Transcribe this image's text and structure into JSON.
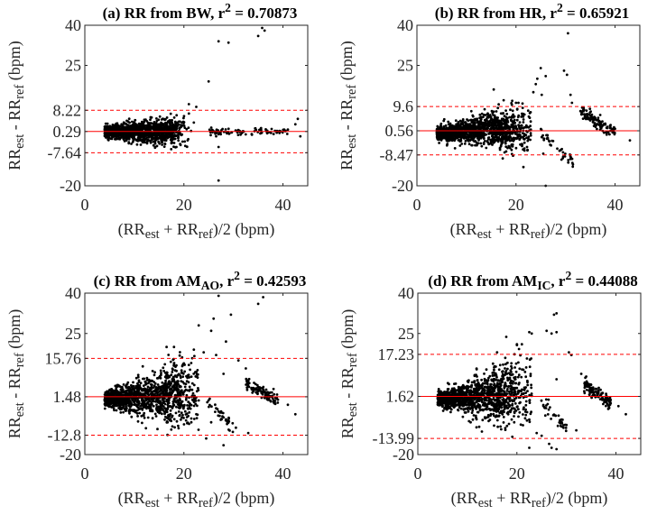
{
  "chart_data": [
    {
      "type": "scatter",
      "title_parts": [
        {
          "t": "(a) RR from BW, r"
        },
        {
          "t": "2",
          "sup": true
        },
        {
          "t": " = 0.70873"
        }
      ],
      "xlabel_parts": [
        {
          "t": "(RR"
        },
        {
          "t": "est",
          "sub": true
        },
        {
          "t": " + RR"
        },
        {
          "t": "ref",
          "sub": true
        },
        {
          "t": ")/2 (bpm)"
        }
      ],
      "ylabel_parts": [
        {
          "t": "RR"
        },
        {
          "t": "est",
          "sub": true
        },
        {
          "t": " - RR"
        },
        {
          "t": "ref",
          "sub": true
        },
        {
          "t": " (bpm)"
        }
      ],
      "xlim": [
        0,
        45
      ],
      "ylim": [
        -20,
        40
      ],
      "xticks": [
        0,
        20,
        40
      ],
      "yticks": [
        {
          "v": 40,
          "label": "40"
        },
        {
          "v": 25,
          "label": "25"
        },
        {
          "v": 8.22,
          "label": "8.22"
        },
        {
          "v": 0.29,
          "label": "0.29"
        },
        {
          "v": -7.64,
          "label": "-7.64"
        },
        {
          "v": -20,
          "label": "-20"
        }
      ],
      "mean_line": {
        "value": 0.29,
        "color": "#ff0000",
        "style": "solid"
      },
      "limit_lines": [
        {
          "value": 8.22,
          "color": "#ff0000",
          "style": "dashed"
        },
        {
          "value": -7.64,
          "color": "#ff0000",
          "style": "dashed"
        }
      ],
      "points_outliers": [
        [
          27,
          34
        ],
        [
          29,
          33.5
        ],
        [
          35,
          36
        ],
        [
          35.8,
          39
        ],
        [
          36.3,
          38
        ],
        [
          25,
          19
        ],
        [
          27,
          -18
        ],
        [
          21,
          10.5
        ],
        [
          22.5,
          9.5
        ],
        [
          21,
          7
        ],
        [
          27,
          -5.5
        ],
        [
          43,
          5
        ],
        [
          42.5,
          3
        ],
        [
          43.5,
          -1.5
        ],
        [
          18.5,
          -5.5
        ],
        [
          26.5,
          -1.5
        ],
        [
          41,
          1
        ]
      ],
      "points_band": {
        "x_range": [
          25,
          41
        ],
        "y_from": 0.3,
        "y_to": 0.3
      },
      "point_color": "#000000"
    },
    {
      "type": "scatter",
      "title_parts": [
        {
          "t": "(b) RR from HR, r"
        },
        {
          "t": "2",
          "sup": true
        },
        {
          "t": " = 0.65921"
        }
      ],
      "xlabel_parts": [
        {
          "t": "(RR"
        },
        {
          "t": "est",
          "sub": true
        },
        {
          "t": " + RR"
        },
        {
          "t": "ref",
          "sub": true
        },
        {
          "t": ")/2 (bpm)"
        }
      ],
      "ylabel_parts": [
        {
          "t": "RR"
        },
        {
          "t": "est",
          "sub": true
        },
        {
          "t": " - RR"
        },
        {
          "t": "ref",
          "sub": true
        },
        {
          "t": " (bpm)"
        }
      ],
      "xlim": [
        0,
        45
      ],
      "ylim": [
        -20,
        40
      ],
      "xticks": [
        0,
        20,
        40
      ],
      "yticks": [
        {
          "v": 40,
          "label": "40"
        },
        {
          "v": 25,
          "label": "25"
        },
        {
          "v": 9.6,
          "label": "9.6"
        },
        {
          "v": 0.56,
          "label": "0.56"
        },
        {
          "v": -8.47,
          "label": "-8.47"
        },
        {
          "v": -20,
          "label": "-20"
        }
      ],
      "mean_line": {
        "value": 0.56,
        "color": "#ff0000",
        "style": "solid"
      },
      "limit_lines": [
        {
          "value": 9.6,
          "color": "#ff0000",
          "style": "dashed"
        },
        {
          "value": -8.47,
          "color": "#ff0000",
          "style": "dashed"
        }
      ],
      "points_outliers": [
        [
          23.5,
          15
        ],
        [
          24,
          18
        ],
        [
          24.3,
          20
        ],
        [
          25,
          24
        ],
        [
          25.2,
          14
        ],
        [
          26,
          21
        ],
        [
          29.7,
          23
        ],
        [
          30.3,
          21.5
        ],
        [
          30.5,
          37
        ],
        [
          31,
          14
        ],
        [
          31.3,
          11
        ],
        [
          26,
          -20
        ],
        [
          21.5,
          -13
        ],
        [
          43,
          -3
        ],
        [
          15.5,
          16
        ],
        [
          17.5,
          12
        ],
        [
          20,
          11
        ],
        [
          20.5,
          11
        ],
        [
          25.5,
          -8
        ],
        [
          29.5,
          -7.5
        ],
        [
          31.5,
          -12
        ],
        [
          31,
          -10
        ],
        [
          23,
          1
        ],
        [
          22,
          -1
        ]
      ],
      "points_band": {
        "x_range": [
          33,
          40
        ],
        "y_from": 8,
        "y_to": 0
      },
      "points_band2": {
        "x_range": [
          25,
          31.5
        ],
        "y_from": 0,
        "y_to": -11
      },
      "point_color": "#000000"
    },
    {
      "type": "scatter",
      "title_parts": [
        {
          "t": "(c) RR from AM"
        },
        {
          "t": "AO",
          "sub": true
        },
        {
          "t": ", r"
        },
        {
          "t": "2",
          "sup": true
        },
        {
          "t": " = 0.42593"
        }
      ],
      "xlabel_parts": [
        {
          "t": "(RR"
        },
        {
          "t": "est",
          "sub": true
        },
        {
          "t": " + RR"
        },
        {
          "t": "ref",
          "sub": true
        },
        {
          "t": ")/2 (bpm)"
        }
      ],
      "ylabel_parts": [
        {
          "t": "RR"
        },
        {
          "t": "est",
          "sub": true
        },
        {
          "t": " - RR"
        },
        {
          "t": "ref",
          "sub": true
        },
        {
          "t": " (bpm)"
        }
      ],
      "xlim": [
        0,
        45
      ],
      "ylim": [
        -20,
        40
      ],
      "xticks": [
        0,
        20,
        40
      ],
      "yticks": [
        {
          "v": 40,
          "label": "40"
        },
        {
          "v": 25,
          "label": "25"
        },
        {
          "v": 15.76,
          "label": "15.76"
        },
        {
          "v": 1.48,
          "label": "1.48"
        },
        {
          "v": -12.8,
          "label": "-12.8"
        },
        {
          "v": -20,
          "label": "-20"
        }
      ],
      "mean_line": {
        "value": 1.48,
        "color": "#ff0000",
        "style": "solid"
      },
      "limit_lines": [
        {
          "value": 15.76,
          "color": "#ff0000",
          "style": "dashed"
        },
        {
          "value": -12.8,
          "color": "#ff0000",
          "style": "dashed"
        }
      ],
      "points_outliers": [
        [
          27,
          39
        ],
        [
          35,
          36
        ],
        [
          36,
          38.5
        ],
        [
          29.5,
          32
        ],
        [
          26,
          30.5
        ],
        [
          23,
          28
        ],
        [
          28.5,
          22
        ],
        [
          25.5,
          26
        ],
        [
          26.5,
          17
        ],
        [
          22,
          19
        ],
        [
          24,
          18
        ],
        [
          16.5,
          20
        ],
        [
          18,
          20
        ],
        [
          31,
          15
        ],
        [
          32.5,
          12
        ],
        [
          28,
          10
        ],
        [
          25.5,
          -8
        ],
        [
          33,
          -12
        ],
        [
          24.5,
          -14
        ],
        [
          28,
          -16.5
        ],
        [
          42.5,
          -5
        ],
        [
          41,
          -1.5
        ],
        [
          30.5,
          -10
        ],
        [
          22.5,
          -5
        ],
        [
          27,
          -4
        ]
      ],
      "points_band": {
        "x_range": [
          32.5,
          39
        ],
        "y_from": 7,
        "y_to": 0
      },
      "points_band2": {
        "x_range": [
          24.5,
          30
        ],
        "y_from": 0,
        "y_to": -10
      },
      "point_color": "#000000"
    },
    {
      "type": "scatter",
      "title_parts": [
        {
          "t": "(d) RR from AM"
        },
        {
          "t": "IC",
          "sub": true
        },
        {
          "t": ", r"
        },
        {
          "t": "2",
          "sup": true
        },
        {
          "t": " = 0.44088"
        }
      ],
      "xlabel_parts": [
        {
          "t": "(RR"
        },
        {
          "t": "est",
          "sub": true
        },
        {
          "t": " + RR"
        },
        {
          "t": "ref",
          "sub": true
        },
        {
          "t": ")/2 (bpm)"
        }
      ],
      "ylabel_parts": [
        {
          "t": "RR"
        },
        {
          "t": "est",
          "sub": true
        },
        {
          "t": " - RR"
        },
        {
          "t": "ref",
          "sub": true
        },
        {
          "t": " (bpm)"
        }
      ],
      "xlim": [
        0,
        45
      ],
      "ylim": [
        -20,
        40
      ],
      "xticks": [
        0,
        20,
        40
      ],
      "yticks": [
        {
          "v": 40,
          "label": "40"
        },
        {
          "v": 25,
          "label": "25"
        },
        {
          "v": 17.23,
          "label": "17.23"
        },
        {
          "v": 1.62,
          "label": "1.62"
        },
        {
          "v": -13.99,
          "label": "-13.99"
        },
        {
          "v": -20,
          "label": "-20"
        }
      ],
      "mean_line": {
        "value": 1.62,
        "color": "#ff0000",
        "style": "solid"
      },
      "limit_lines": [
        {
          "value": 17.23,
          "color": "#ff0000",
          "style": "dashed"
        },
        {
          "value": -13.99,
          "color": "#ff0000",
          "style": "dashed"
        }
      ],
      "points_outliers": [
        [
          27.5,
          32
        ],
        [
          28,
          32.5
        ],
        [
          23,
          25
        ],
        [
          22.5,
          25.5
        ],
        [
          26,
          26
        ],
        [
          27,
          25
        ],
        [
          28,
          25.5
        ],
        [
          31,
          17
        ],
        [
          30.5,
          18
        ],
        [
          20,
          21
        ],
        [
          21,
          21
        ],
        [
          16,
          18
        ],
        [
          22.5,
          -17.5
        ],
        [
          27,
          -17.5
        ],
        [
          28,
          -18
        ],
        [
          26.5,
          -16
        ],
        [
          24,
          -12
        ],
        [
          25,
          -13
        ],
        [
          42,
          -5
        ],
        [
          40.5,
          -2
        ],
        [
          33,
          10
        ],
        [
          34,
          9
        ],
        [
          28,
          8
        ],
        [
          29,
          -7
        ],
        [
          30,
          -9
        ],
        [
          32,
          -11
        ]
      ],
      "points_band": {
        "x_range": [
          33.5,
          39
        ],
        "y_from": 6,
        "y_to": -1
      },
      "points_band2": {
        "x_range": [
          24.5,
          30
        ],
        "y_from": 0,
        "y_to": -10
      },
      "point_color": "#000000"
    }
  ]
}
